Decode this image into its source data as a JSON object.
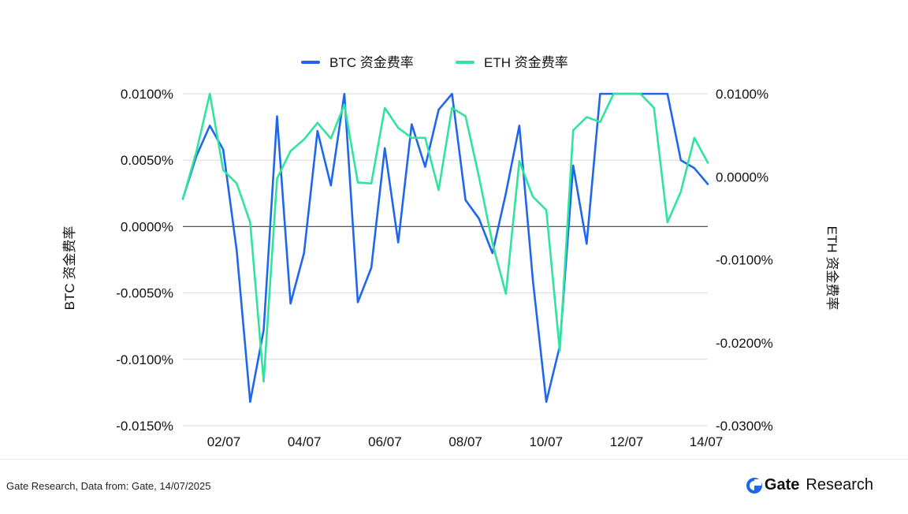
{
  "chart_data": {
    "type": "line",
    "legend": {
      "placement": "top-center"
    },
    "x_tick_labels": [
      "02/07",
      "04/07",
      "06/07",
      "08/07",
      "10/07",
      "12/07",
      "14/07"
    ],
    "left_axis": {
      "label": "BTC 资金费率",
      "range": [
        -0.015,
        0.01
      ],
      "ticks": [
        0.01,
        0.005,
        0.0,
        -0.005,
        -0.01,
        -0.015
      ],
      "tick_labels": [
        "0.0100%",
        "0.0050%",
        "0.0000%",
        "-0.0050%",
        "-0.0100%",
        "-0.0150%"
      ]
    },
    "right_axis": {
      "label": "ETH 资金费率",
      "range": [
        -0.03,
        0.01
      ],
      "ticks": [
        0.01,
        0.0,
        -0.01,
        -0.02,
        -0.03
      ],
      "tick_labels": [
        "0.0100%",
        "0.0000%",
        "-0.0100%",
        "-0.0200%",
        "-0.0300%"
      ]
    },
    "series": [
      {
        "name": "BTC 资金费率",
        "axis": "left",
        "color": "#1f66ee",
        "values": [
          0.0021,
          0.0053,
          0.0076,
          0.0058,
          -0.0018,
          -0.0132,
          -0.0078,
          0.0083,
          -0.0058,
          -0.002,
          0.0072,
          0.0031,
          0.01,
          -0.0057,
          -0.0031,
          0.0059,
          -0.0012,
          0.0077,
          0.0045,
          0.0088,
          0.01,
          0.002,
          0.0006,
          -0.002,
          0.0025,
          0.0076,
          -0.004,
          -0.0132,
          -0.009,
          0.0046,
          -0.0013,
          0.01,
          0.01,
          0.01,
          0.01,
          0.01,
          0.01,
          0.005,
          0.0044,
          0.0032
        ]
      },
      {
        "name": "ETH 资金费率",
        "axis": "right",
        "color": "#2fe49c",
        "values": [
          -0.0027,
          0.003,
          0.01,
          0.0008,
          -0.0008,
          -0.0055,
          -0.0247,
          -0.0002,
          0.0031,
          0.0045,
          0.0065,
          0.0046,
          0.0087,
          -0.0007,
          -0.0008,
          0.0083,
          0.0059,
          0.0047,
          0.0047,
          -0.0016,
          0.0083,
          0.0073,
          0.0,
          -0.008,
          -0.0141,
          0.0019,
          -0.0024,
          -0.004,
          -0.021,
          0.0056,
          0.0072,
          0.0066,
          0.01,
          0.01,
          0.01,
          0.0083,
          -0.0055,
          -0.0018,
          0.0047,
          0.0017
        ]
      }
    ]
  },
  "footer": {
    "note": "Gate Research, Data from: Gate, 14/07/2025",
    "brand_name": "Gate",
    "brand_suffix": "Research"
  }
}
